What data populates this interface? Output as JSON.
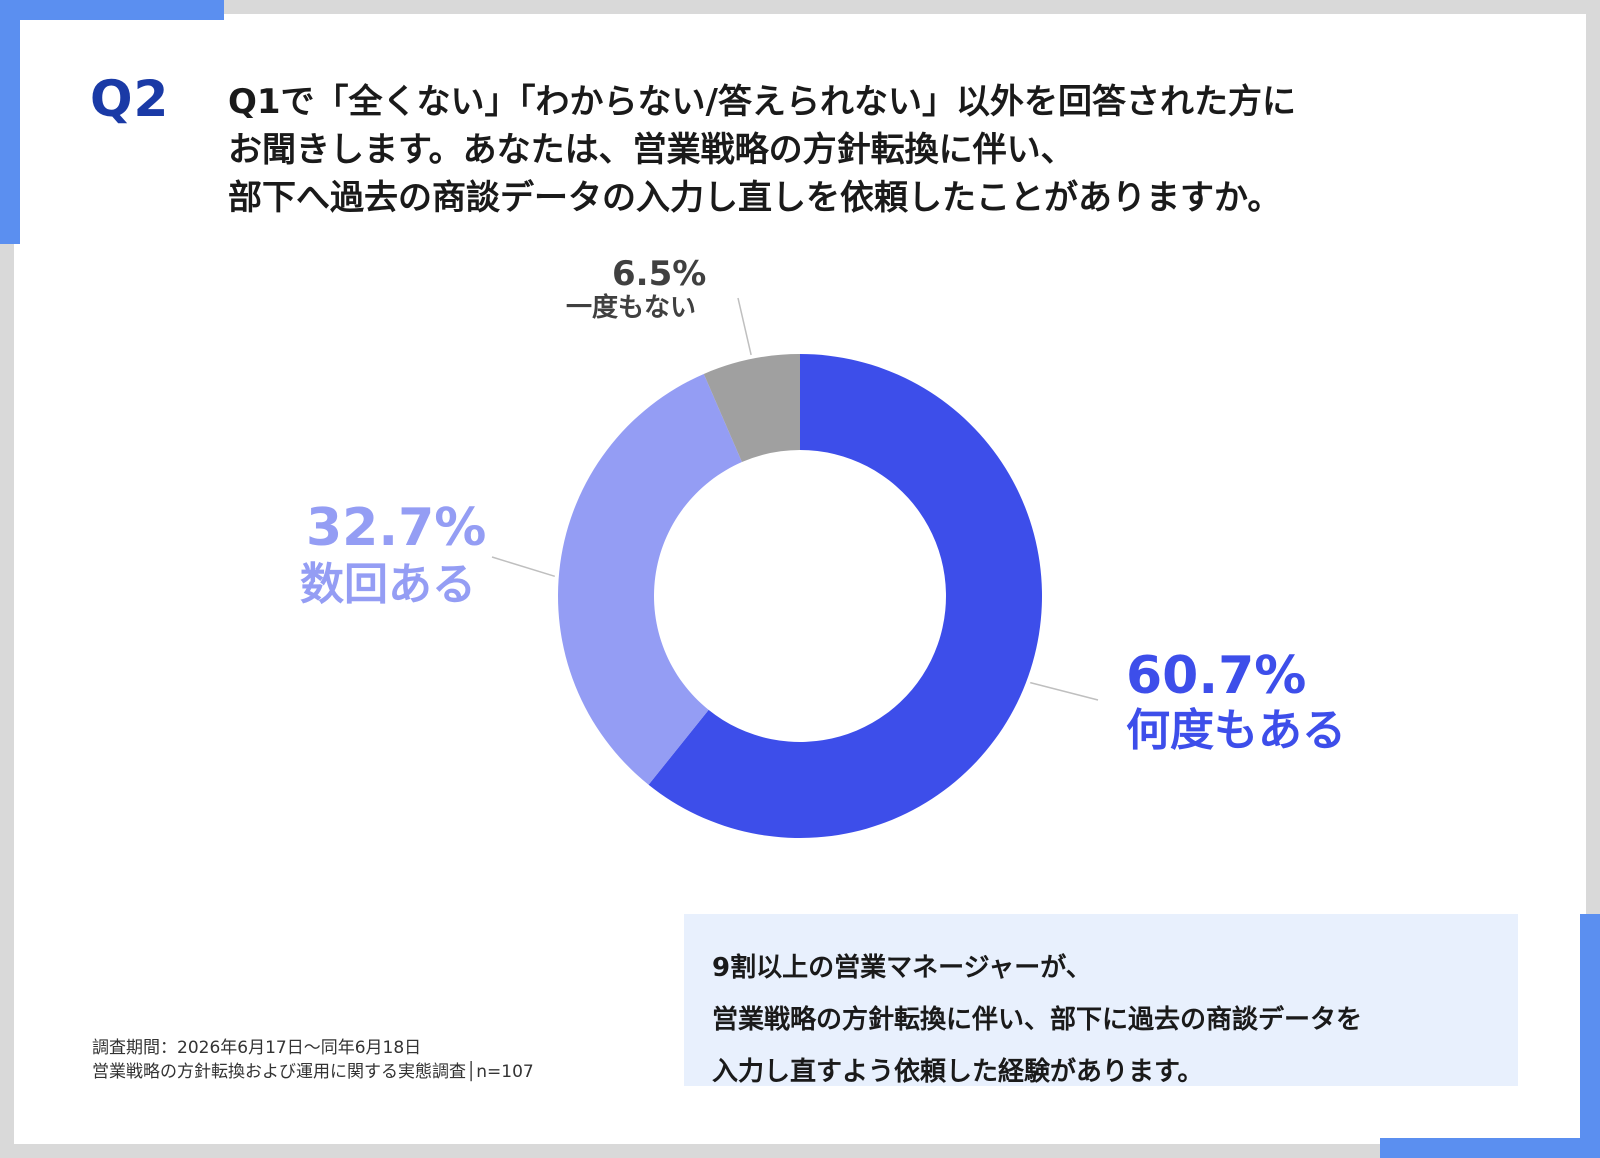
{
  "header": {
    "q_label": "Q2",
    "question_lines": [
      "Q1で「全くない」「わからない/答えられない」以外を回答された方に",
      "お聞きします。あなたは、営業戦略の方針転換に伴い、",
      "部下へ過去の商談データの入力し直しを依頼したことがありますか。"
    ]
  },
  "chart_data": {
    "type": "pie",
    "donut": true,
    "slices": [
      {
        "label": "何度もある",
        "value": 60.7,
        "value_label": "60.7%",
        "color": "#3d4eea"
      },
      {
        "label": "数回ある",
        "value": 32.7,
        "value_label": "32.7%",
        "color": "#949df4"
      },
      {
        "label": "一度もない",
        "value": 6.5,
        "value_label": "6.5%",
        "color": "#a0a0a0"
      }
    ],
    "label_colors": [
      "#3d4eea",
      "#949df4",
      "#404040"
    ]
  },
  "footnote": {
    "line1": "調査期間：2026年6月17日～同年6月18日",
    "line2": "営業戦略の方針転換および運用に関する実態調査│n=107"
  },
  "callout": {
    "lines": [
      "9割以上の営業マネージャーが、",
      "営業戦略の方針転換に伴い、部下に過去の商談データを",
      "入力し直すよう依頼した経験があります。"
    ]
  }
}
